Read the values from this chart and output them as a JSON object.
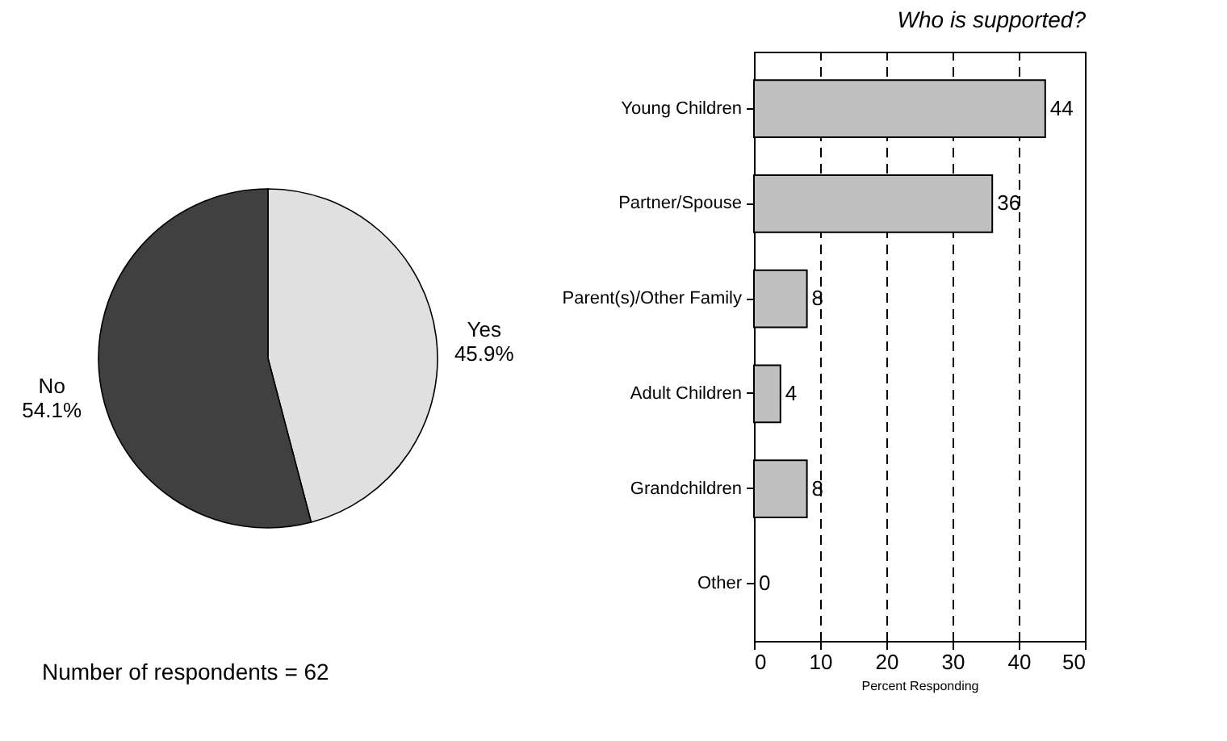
{
  "chart_data": [
    {
      "type": "pie",
      "categories": [
        "Yes",
        "No"
      ],
      "values": [
        45.9,
        54.1
      ],
      "colors": [
        "#e0e0e0",
        "#404040"
      ],
      "value_labels": [
        "45.9%",
        "54.1%"
      ],
      "annotations": [
        "Number of respondents = 62"
      ]
    },
    {
      "type": "bar",
      "orientation": "horizontal",
      "title": "Who is supported?",
      "xlabel": "Percent Responding",
      "categories": [
        "Young Children",
        "Partner/Spouse",
        "Parent(s)/Other Family",
        "Adult Children",
        "Grandchildren",
        "Other"
      ],
      "values": [
        44,
        36,
        8,
        4,
        8,
        0
      ],
      "color": "#c0c0c0",
      "data_labels": true,
      "xlim": [
        0,
        50
      ],
      "xticks": [
        0,
        10,
        20,
        30,
        40,
        50
      ],
      "grid": "x",
      "line_style": "dashed"
    }
  ]
}
